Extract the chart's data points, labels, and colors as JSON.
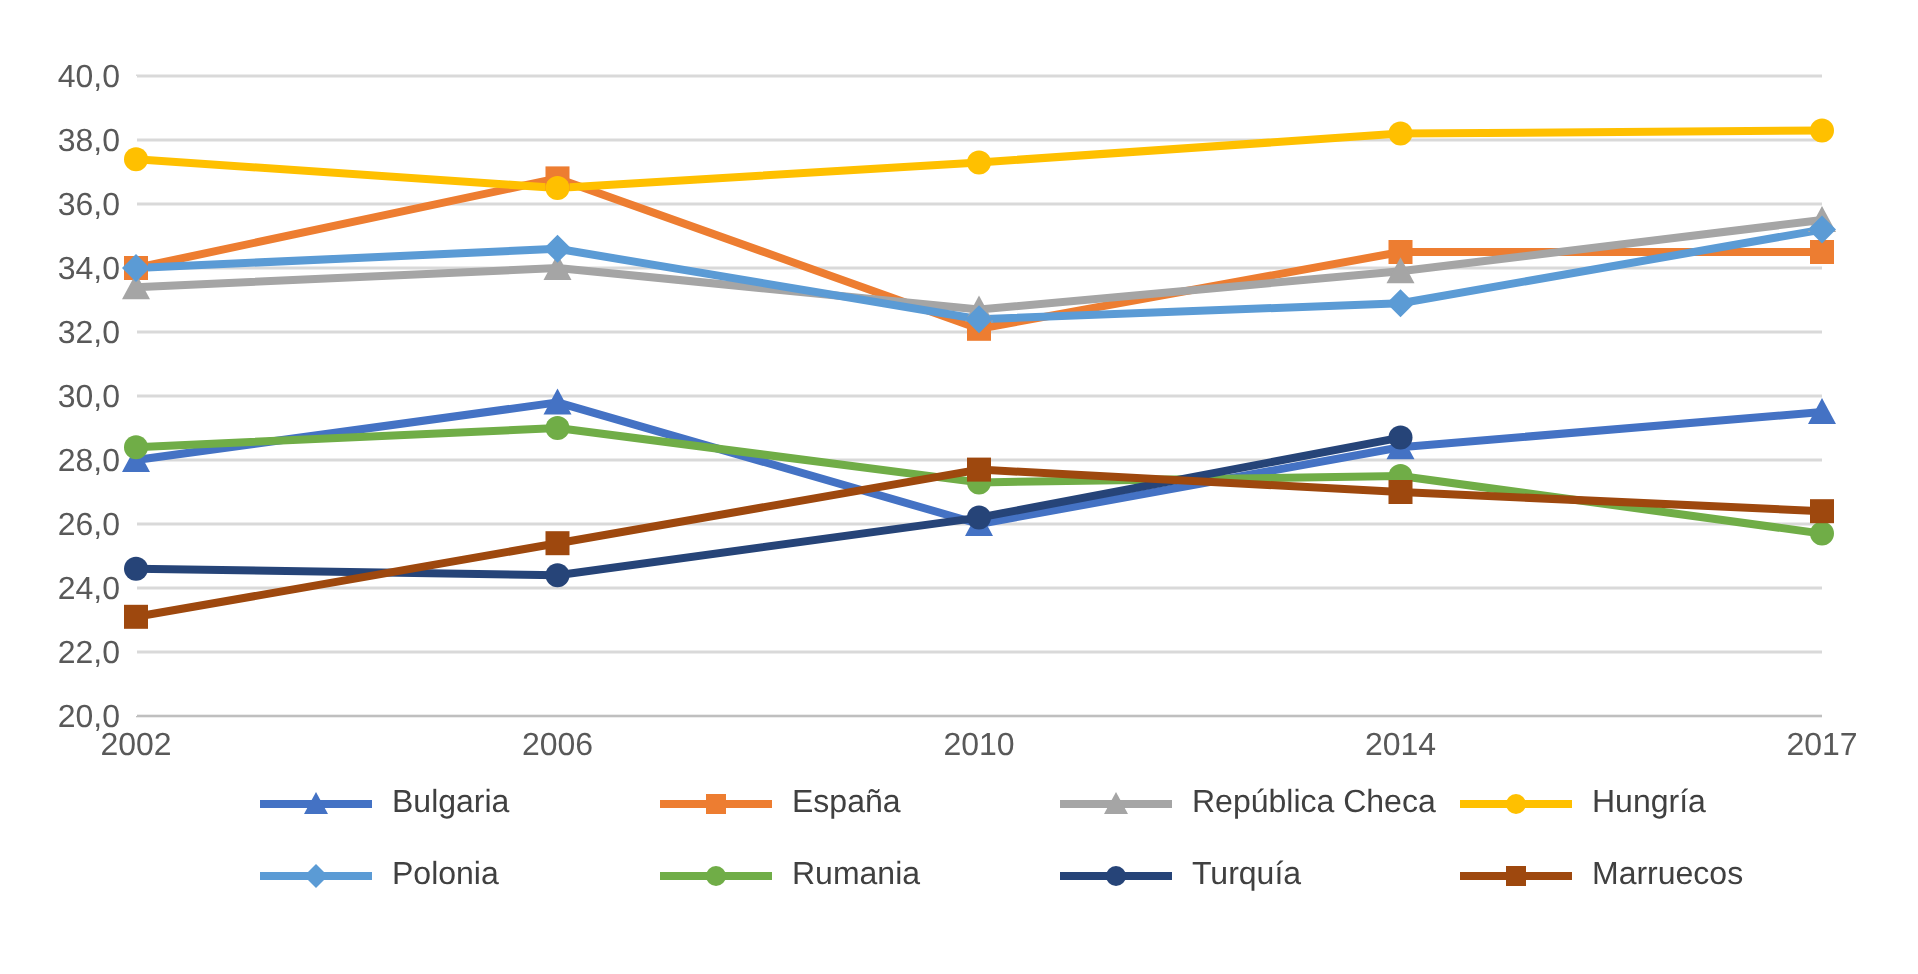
{
  "chart_data": {
    "type": "line",
    "categories": [
      "2002",
      "2006",
      "2010",
      "2014",
      "2017"
    ],
    "series": [
      {
        "name": "Bulgaria",
        "color": "#4472c4",
        "marker": "triangle",
        "values": [
          28.0,
          29.8,
          26.0,
          28.4,
          29.5
        ]
      },
      {
        "name": "España",
        "color": "#ed7d31",
        "marker": "square",
        "values": [
          34.0,
          36.8,
          32.1,
          34.5,
          34.5
        ]
      },
      {
        "name": "República Checa",
        "color": "#a5a5a5",
        "marker": "triangle",
        "values": [
          33.4,
          34.0,
          32.7,
          33.9,
          35.5
        ]
      },
      {
        "name": "Hungría",
        "color": "#ffc000",
        "marker": "circle",
        "values": [
          37.4,
          36.5,
          37.3,
          38.2,
          38.3
        ]
      },
      {
        "name": "Polonia",
        "color": "#5b9bd5",
        "marker": "diamond",
        "values": [
          34.0,
          34.6,
          32.4,
          32.9,
          35.2
        ]
      },
      {
        "name": "Rumania",
        "color": "#70ad47",
        "marker": "circle",
        "values": [
          28.4,
          29.0,
          27.3,
          27.5,
          25.7
        ]
      },
      {
        "name": "Turquía",
        "color": "#264478",
        "marker": "circle",
        "values": [
          24.6,
          24.4,
          26.2,
          28.7,
          null
        ]
      },
      {
        "name": "Marruecos",
        "color": "#9e480e",
        "marker": "square",
        "values": [
          23.1,
          25.4,
          27.7,
          27.0,
          26.4
        ]
      }
    ],
    "ylim": [
      20,
      40
    ],
    "yticks": [
      {
        "value": 20,
        "label": "20,0"
      },
      {
        "value": 22,
        "label": "22,0"
      },
      {
        "value": 24,
        "label": "24,0"
      },
      {
        "value": 26,
        "label": "26,0"
      },
      {
        "value": 28,
        "label": "28,0"
      },
      {
        "value": 30,
        "label": "30,0"
      },
      {
        "value": 32,
        "label": "32,0"
      },
      {
        "value": 34,
        "label": "34,0"
      },
      {
        "value": 36,
        "label": "36,0"
      },
      {
        "value": 38,
        "label": "38,0"
      },
      {
        "value": 40,
        "label": "40,0"
      }
    ],
    "grid": "y",
    "legend": "bottom",
    "line_style": "solid"
  }
}
